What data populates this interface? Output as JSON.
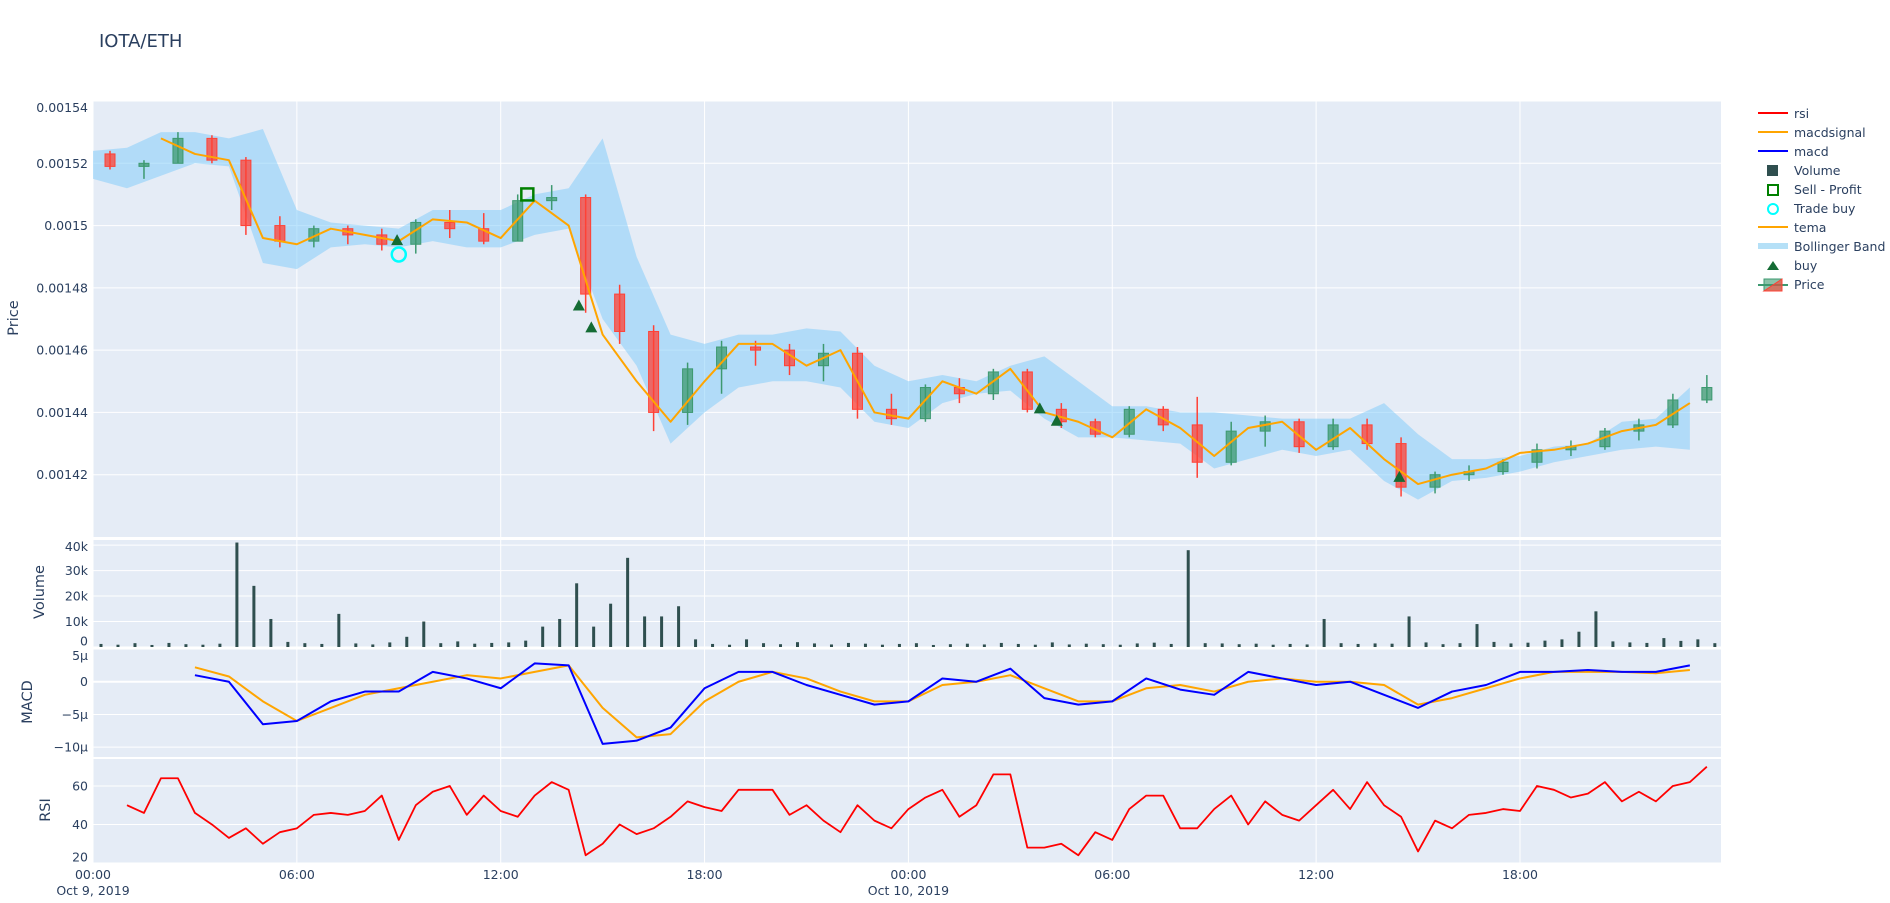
{
  "chart_data": {
    "type": "candlestick",
    "title": "IOTA/ETH",
    "xrange": [
      "2019-10-09 00:00",
      "2019-10-10 23:55"
    ],
    "grid": true,
    "legend_position": "right",
    "xticks": [
      {
        "t": "2019-10-09 00:00",
        "label": "00:00",
        "sub": "Oct 9, 2019"
      },
      {
        "t": "2019-10-09 06:00",
        "label": "06:00",
        "sub": ""
      },
      {
        "t": "2019-10-09 12:00",
        "label": "12:00",
        "sub": ""
      },
      {
        "t": "2019-10-09 18:00",
        "label": "18:00",
        "sub": ""
      },
      {
        "t": "2019-10-10 00:00",
        "label": "00:00",
        "sub": "Oct 10, 2019"
      },
      {
        "t": "2019-10-10 06:00",
        "label": "06:00",
        "sub": ""
      },
      {
        "t": "2019-10-10 12:00",
        "label": "12:00",
        "sub": ""
      },
      {
        "t": "2019-10-10 18:00",
        "label": "18:00",
        "sub": ""
      }
    ],
    "hourly_x": [
      "2019-10-09 00:00",
      "2019-10-09 01:00",
      "2019-10-09 02:00",
      "2019-10-09 03:00",
      "2019-10-09 04:00",
      "2019-10-09 05:00",
      "2019-10-09 06:00",
      "2019-10-09 07:00",
      "2019-10-09 08:00",
      "2019-10-09 09:00",
      "2019-10-09 10:00",
      "2019-10-09 11:00",
      "2019-10-09 12:00",
      "2019-10-09 13:00",
      "2019-10-09 14:00",
      "2019-10-09 15:00",
      "2019-10-09 16:00",
      "2019-10-09 17:00",
      "2019-10-09 18:00",
      "2019-10-09 19:00",
      "2019-10-09 20:00",
      "2019-10-09 21:00",
      "2019-10-09 22:00",
      "2019-10-09 23:00",
      "2019-10-10 00:00",
      "2019-10-10 01:00",
      "2019-10-10 02:00",
      "2019-10-10 03:00",
      "2019-10-10 04:00",
      "2019-10-10 05:00",
      "2019-10-10 06:00",
      "2019-10-10 07:00",
      "2019-10-10 08:00",
      "2019-10-10 09:00",
      "2019-10-10 10:00",
      "2019-10-10 11:00",
      "2019-10-10 12:00",
      "2019-10-10 13:00",
      "2019-10-10 14:00",
      "2019-10-10 15:00",
      "2019-10-10 16:00",
      "2019-10-10 17:00",
      "2019-10-10 18:00",
      "2019-10-10 19:00",
      "2019-10-10 20:00",
      "2019-10-10 21:00",
      "2019-10-10 22:00",
      "2019-10-10 23:00"
    ],
    "halfhourly_x": [
      "2019-10-09 00:00",
      "2019-10-09 00:30",
      "2019-10-09 01:00",
      "2019-10-09 01:30",
      "2019-10-09 02:00",
      "2019-10-09 02:30",
      "2019-10-09 03:00",
      "2019-10-09 03:30",
      "2019-10-09 04:00",
      "2019-10-09 04:30",
      "2019-10-09 05:00",
      "2019-10-09 05:30",
      "2019-10-09 06:00",
      "2019-10-09 06:30",
      "2019-10-09 07:00",
      "2019-10-09 07:30",
      "2019-10-09 08:00",
      "2019-10-09 08:30",
      "2019-10-09 09:00",
      "2019-10-09 09:30",
      "2019-10-09 10:00",
      "2019-10-09 10:30",
      "2019-10-09 11:00",
      "2019-10-09 11:30",
      "2019-10-09 12:00",
      "2019-10-09 12:30",
      "2019-10-09 13:00",
      "2019-10-09 13:30",
      "2019-10-09 14:00",
      "2019-10-09 14:30",
      "2019-10-09 15:00",
      "2019-10-09 15:30",
      "2019-10-09 16:00",
      "2019-10-09 16:30",
      "2019-10-09 17:00",
      "2019-10-09 17:30",
      "2019-10-09 18:00",
      "2019-10-09 18:30",
      "2019-10-09 19:00",
      "2019-10-09 19:30",
      "2019-10-09 20:00",
      "2019-10-09 20:30",
      "2019-10-09 21:00",
      "2019-10-09 21:30",
      "2019-10-09 22:00",
      "2019-10-09 22:30",
      "2019-10-09 23:00",
      "2019-10-09 23:30",
      "2019-10-10 00:00",
      "2019-10-10 00:30",
      "2019-10-10 01:00",
      "2019-10-10 01:30",
      "2019-10-10 02:00",
      "2019-10-10 02:30",
      "2019-10-10 03:00",
      "2019-10-10 03:30",
      "2019-10-10 04:00",
      "2019-10-10 04:30",
      "2019-10-10 05:00",
      "2019-10-10 05:30",
      "2019-10-10 06:00",
      "2019-10-10 06:30",
      "2019-10-10 07:00",
      "2019-10-10 07:30",
      "2019-10-10 08:00",
      "2019-10-10 08:30",
      "2019-10-10 09:00",
      "2019-10-10 09:30",
      "2019-10-10 10:00",
      "2019-10-10 10:30",
      "2019-10-10 11:00",
      "2019-10-10 11:30",
      "2019-10-10 12:00",
      "2019-10-10 12:30",
      "2019-10-10 13:00",
      "2019-10-10 13:30",
      "2019-10-10 14:00",
      "2019-10-10 14:30",
      "2019-10-10 15:00",
      "2019-10-10 15:30",
      "2019-10-10 16:00",
      "2019-10-10 16:30",
      "2019-10-10 17:00",
      "2019-10-10 17:30",
      "2019-10-10 18:00",
      "2019-10-10 18:30",
      "2019-10-10 19:00",
      "2019-10-10 19:30",
      "2019-10-10 20:00",
      "2019-10-10 20:30",
      "2019-10-10 21:00",
      "2019-10-10 21:30",
      "2019-10-10 22:00",
      "2019-10-10 22:30",
      "2019-10-10 23:00",
      "2019-10-10 23:30"
    ],
    "price": {
      "ylabel": "Price",
      "ylim": [
        0.0014,
        0.00154
      ],
      "yticks": [
        {
          "v": 0.00142,
          "label": "0.00142"
        },
        {
          "v": 0.00144,
          "label": "0.00144"
        },
        {
          "v": 0.00146,
          "label": "0.00146"
        },
        {
          "v": 0.00148,
          "label": "0.00148"
        },
        {
          "v": 0.0015,
          "label": "0.0015"
        },
        {
          "v": 0.00152,
          "label": "0.00152"
        },
        {
          "v": 0.00154,
          "label": "0.00154"
        }
      ],
      "ohlc": [
        [
          0.001523,
          0.001524,
          0.001518,
          0.001519
        ],
        [
          0.001519,
          0.001521,
          0.001515,
          0.00152
        ],
        [
          0.00152,
          0.00153,
          0.00152,
          0.001528
        ],
        [
          0.001528,
          0.001529,
          0.00152,
          0.001521
        ],
        [
          0.001521,
          0.001522,
          0.001497,
          0.0015
        ],
        [
          0.0015,
          0.001503,
          0.001493,
          0.001495
        ],
        [
          0.001495,
          0.0015,
          0.001493,
          0.001499
        ],
        [
          0.001499,
          0.0015,
          0.001494,
          0.001497
        ],
        [
          0.001497,
          0.001499,
          0.001492,
          0.001494
        ],
        [
          0.001494,
          0.001502,
          0.001491,
          0.001501
        ],
        [
          0.001501,
          0.001505,
          0.001496,
          0.001499
        ],
        [
          0.001499,
          0.001504,
          0.001494,
          0.001495
        ],
        [
          0.001495,
          0.00151,
          0.001495,
          0.001508
        ],
        [
          0.001508,
          0.001513,
          0.001505,
          0.001509
        ],
        [
          0.001509,
          0.00151,
          0.001472,
          0.001478
        ],
        [
          0.001478,
          0.001481,
          0.001462,
          0.001466
        ],
        [
          0.001466,
          0.001468,
          0.001434,
          0.00144
        ],
        [
          0.00144,
          0.001456,
          0.001436,
          0.001454
        ],
        [
          0.001454,
          0.001463,
          0.001446,
          0.001461
        ],
        [
          0.001461,
          0.001463,
          0.001455,
          0.00146
        ],
        [
          0.00146,
          0.001462,
          0.001452,
          0.001455
        ],
        [
          0.001455,
          0.001462,
          0.00145,
          0.001459
        ],
        [
          0.001459,
          0.001461,
          0.001438,
          0.001441
        ],
        [
          0.001441,
          0.001446,
          0.001436,
          0.001438
        ],
        [
          0.001438,
          0.001449,
          0.001437,
          0.001448
        ],
        [
          0.001448,
          0.001451,
          0.001443,
          0.001446
        ],
        [
          0.001446,
          0.001454,
          0.001444,
          0.001453
        ],
        [
          0.001453,
          0.001454,
          0.00144,
          0.001441
        ],
        [
          0.001441,
          0.001443,
          0.001435,
          0.001437
        ],
        [
          0.001437,
          0.001438,
          0.001432,
          0.001433
        ],
        [
          0.001433,
          0.001442,
          0.001432,
          0.001441
        ],
        [
          0.001441,
          0.001442,
          0.001434,
          0.001436
        ],
        [
          0.001436,
          0.001445,
          0.001419,
          0.001424
        ],
        [
          0.001424,
          0.001437,
          0.001423,
          0.001434
        ],
        [
          0.001434,
          0.001439,
          0.001429,
          0.001437
        ],
        [
          0.001437,
          0.001438,
          0.001427,
          0.001429
        ],
        [
          0.001429,
          0.001438,
          0.001428,
          0.001436
        ],
        [
          0.001436,
          0.001438,
          0.001428,
          0.00143
        ],
        [
          0.00143,
          0.001432,
          0.001413,
          0.001416
        ],
        [
          0.001416,
          0.001421,
          0.001414,
          0.00142
        ],
        [
          0.00142,
          0.001423,
          0.001418,
          0.001421
        ],
        [
          0.001421,
          0.001425,
          0.00142,
          0.001424
        ],
        [
          0.001424,
          0.00143,
          0.001422,
          0.001428
        ],
        [
          0.001428,
          0.001431,
          0.001426,
          0.001429
        ],
        [
          0.001429,
          0.001435,
          0.001428,
          0.001434
        ],
        [
          0.001434,
          0.001438,
          0.001431,
          0.001436
        ],
        [
          0.001436,
          0.001446,
          0.001435,
          0.001444
        ],
        [
          0.001444,
          0.001452,
          0.001443,
          0.001448
        ]
      ],
      "tema": [
        null,
        null,
        0.001528,
        0.001523,
        0.001521,
        0.001496,
        0.001494,
        0.001499,
        0.001497,
        0.001495,
        0.001502,
        0.001501,
        0.001496,
        0.001508,
        0.0015,
        0.001465,
        0.00145,
        0.001437,
        0.00145,
        0.001462,
        0.001462,
        0.001455,
        0.00146,
        0.00144,
        0.001438,
        0.00145,
        0.001446,
        0.001454,
        0.00144,
        0.001437,
        0.001432,
        0.001441,
        0.001435,
        0.001426,
        0.001435,
        0.001437,
        0.001428,
        0.001435,
        0.001425,
        0.001417,
        0.00142,
        0.001422,
        0.001427,
        0.001428,
        0.00143,
        0.001434,
        0.001436,
        0.001443
      ],
      "bb_upper": [
        0.001524,
        0.001525,
        0.00153,
        0.00153,
        0.001528,
        0.001531,
        0.001505,
        0.001501,
        0.0015,
        0.001499,
        0.001505,
        0.001505,
        0.001505,
        0.00151,
        0.001512,
        0.001528,
        0.00149,
        0.001465,
        0.001462,
        0.001465,
        0.001465,
        0.001467,
        0.001466,
        0.001455,
        0.00145,
        0.001452,
        0.00145,
        0.001455,
        0.001458,
        0.00145,
        0.001442,
        0.001442,
        0.00144,
        0.00144,
        0.001439,
        0.001438,
        0.001438,
        0.001438,
        0.001443,
        0.001433,
        0.001425,
        0.001425,
        0.001426,
        0.001429,
        0.00143,
        0.001437,
        0.001438,
        0.001448
      ],
      "bb_lower": [
        0.001515,
        0.001512,
        0.001516,
        0.00152,
        0.001519,
        0.001488,
        0.001486,
        0.001493,
        0.001494,
        0.001493,
        0.001495,
        0.001493,
        0.001493,
        0.001497,
        0.001499,
        0.00147,
        0.001455,
        0.00143,
        0.00144,
        0.001448,
        0.00145,
        0.00145,
        0.001448,
        0.001437,
        0.001435,
        0.001443,
        0.001446,
        0.001447,
        0.001438,
        0.001432,
        0.001432,
        0.001431,
        0.00143,
        0.001422,
        0.001425,
        0.001428,
        0.001426,
        0.001428,
        0.001418,
        0.001412,
        0.001418,
        0.001419,
        0.001421,
        0.001424,
        0.001426,
        0.001428,
        0.001429,
        0.001428
      ],
      "buy": [
        {
          "t": "2019-10-09 08:57",
          "price": 0.001495
        },
        {
          "t": "2019-10-09 14:18",
          "price": 0.001474
        },
        {
          "t": "2019-10-09 14:40",
          "price": 0.001467
        },
        {
          "t": "2019-10-10 03:52",
          "price": 0.001441
        },
        {
          "t": "2019-10-10 04:22",
          "price": 0.001437
        },
        {
          "t": "2019-10-10 14:27",
          "price": 0.001419
        }
      ],
      "trade_buy": [
        {
          "t": "2019-10-09 09:00",
          "price": 0.001492
        }
      ],
      "sell_profit": [
        {
          "t": "2019-10-09 12:47",
          "price": 0.00151
        }
      ]
    },
    "volume": {
      "ylabel": "Volume",
      "ylim": [
        0,
        42000
      ],
      "yticks": [
        {
          "v": 0,
          "label": "0"
        },
        {
          "v": 10000,
          "label": "10k"
        },
        {
          "v": 20000,
          "label": "20k"
        },
        {
          "v": 30000,
          "label": "30k"
        },
        {
          "v": 40000,
          "label": "40k"
        }
      ],
      "values": [
        1200,
        900,
        1500,
        800,
        1600,
        1100,
        900,
        1300,
        41000,
        24000,
        11000,
        2000,
        1500,
        1200,
        13000,
        1400,
        1000,
        1800,
        4000,
        10000,
        1500,
        2200,
        1300,
        1600,
        1800,
        2500,
        8000,
        11000,
        25000,
        8000,
        17000,
        35000,
        12000,
        12000,
        16000,
        3000,
        1200,
        900,
        3000,
        1500,
        1100,
        1900,
        1400,
        1000,
        1600,
        1300,
        900,
        1200,
        1500,
        800,
        1100,
        1300,
        1000,
        1600,
        1200,
        900,
        1800,
        1000,
        1300,
        1100,
        900,
        1400,
        1700,
        1200,
        38000,
        1500,
        1400,
        1100,
        1300,
        900,
        1200,
        1000,
        11000,
        1500,
        1200,
        1400,
        1300,
        12000,
        1800,
        1100,
        1500,
        9000,
        2000,
        1400,
        1700,
        2500,
        3000,
        6000,
        14000,
        2200,
        1800,
        1600,
        3500,
        2400,
        3000,
        1500
      ]
    },
    "macd": {
      "ylabel": "MACD",
      "ylim": [
        -1.15e-05,
        5e-06
      ],
      "yticks": [
        {
          "v": 5e-06,
          "label": "5µ"
        },
        {
          "v": 0,
          "label": "0"
        },
        {
          "v": -5e-06,
          "label": "−5µ"
        },
        {
          "v": -1e-05,
          "label": "−10µ"
        }
      ],
      "macd": [
        null,
        null,
        null,
        1e-06,
        0,
        -6.5e-06,
        -6e-06,
        -3e-06,
        -1.5e-06,
        -1.5e-06,
        1.5e-06,
        5e-07,
        -1e-06,
        2.8e-06,
        2.5e-06,
        -9.5e-06,
        -9e-06,
        -7e-06,
        -1e-06,
        1.5e-06,
        1.5e-06,
        -5e-07,
        -2e-06,
        -3.5e-06,
        -3e-06,
        5e-07,
        0,
        2e-06,
        -2.5e-06,
        -3.5e-06,
        -3e-06,
        5e-07,
        -1.2e-06,
        -2e-06,
        1.5e-06,
        5e-07,
        -5e-07,
        0,
        -2e-06,
        -4e-06,
        -1.5e-06,
        -5e-07,
        1.5e-06,
        1.5e-06,
        1.8e-06,
        1.5e-06,
        1.5e-06,
        2.5e-06
      ],
      "macdsignal": [
        null,
        null,
        null,
        2.2e-06,
        8e-07,
        -3e-06,
        -6e-06,
        -4e-06,
        -2e-06,
        -1e-06,
        0,
        1e-06,
        5e-07,
        1.5e-06,
        2.5e-06,
        -4e-06,
        -8.5e-06,
        -8e-06,
        -3e-06,
        0,
        1.5e-06,
        5e-07,
        -1.5e-06,
        -3e-06,
        -3e-06,
        -5e-07,
        0,
        1e-06,
        -1e-06,
        -3e-06,
        -3e-06,
        -1e-06,
        -5e-07,
        -1.5e-06,
        0,
        5e-07,
        0,
        0,
        -5e-07,
        -3.5e-06,
        -2.5e-06,
        -1e-06,
        5e-07,
        1.5e-06,
        1.5e-06,
        1.5e-06,
        1.3e-06,
        1.8e-06
      ]
    },
    "rsi": {
      "ylabel": "RSI",
      "ylim": [
        20,
        74
      ],
      "yticks": [
        {
          "v": 20,
          "label": "20"
        },
        {
          "v": 40,
          "label": "40"
        },
        {
          "v": 60,
          "label": "60"
        }
      ],
      "values": [
        null,
        null,
        50,
        46,
        64,
        64,
        46,
        40,
        33,
        38,
        30,
        36,
        38,
        45,
        46,
        45,
        47,
        55,
        32,
        50,
        57,
        60,
        45,
        55,
        47,
        44,
        55,
        62,
        58,
        24,
        30,
        40,
        35,
        38,
        44,
        52,
        49,
        47,
        58,
        58,
        58,
        45,
        50,
        42,
        36,
        50,
        42,
        38,
        48,
        54,
        58,
        44,
        50,
        66,
        66,
        28,
        28,
        30,
        24,
        36,
        32,
        48,
        55,
        55,
        38,
        38,
        48,
        55,
        40,
        52,
        45,
        42,
        50,
        58,
        48,
        62,
        50,
        44,
        26,
        42,
        38,
        45,
        46,
        48,
        47,
        60,
        58,
        54,
        56,
        62,
        52,
        57,
        52,
        60,
        62,
        70
      ]
    }
  },
  "legend": [
    {
      "name": "rsi",
      "kind": "line",
      "color": "#ff0000"
    },
    {
      "name": "macdsignal",
      "kind": "line",
      "color": "#ffa500"
    },
    {
      "name": "macd",
      "kind": "line",
      "color": "#0000ff"
    },
    {
      "name": "Volume",
      "kind": "square",
      "color": "#2f4f4f"
    },
    {
      "name": "Sell - Profit",
      "kind": "hollow-square",
      "color": "#008000"
    },
    {
      "name": "Trade buy",
      "kind": "hollow-circle",
      "color": "#00ffff"
    },
    {
      "name": "tema",
      "kind": "line",
      "color": "#ffa500"
    },
    {
      "name": "Bollinger Band",
      "kind": "band",
      "color": "#b5e0f7"
    },
    {
      "name": "buy",
      "kind": "triangle",
      "color": "#146b34"
    },
    {
      "name": "Price",
      "kind": "candle",
      "color": "#3d9970"
    }
  ],
  "colors": {
    "increasing": "#3d9970",
    "decreasing": "#ff4136",
    "plot_bg": "#e5ecf6",
    "grid": "#ffffff",
    "text": "#2a3f5f"
  }
}
